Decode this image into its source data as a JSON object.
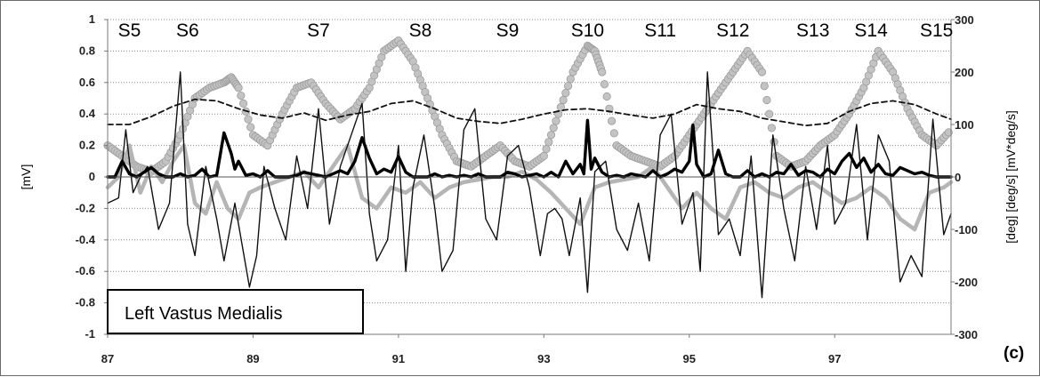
{
  "chart_data": {
    "type": "line",
    "title": "",
    "annotation": "Left Vastus Medialis",
    "panel_label": "(c)",
    "xlabel": "",
    "ylabel_left": "[mV]",
    "ylabel_right": "[deg] [deg/s] [mV*deg/s]",
    "xlim": [
      87,
      98.6
    ],
    "ylim_left": [
      -1,
      1
    ],
    "ylim_right": [
      -300,
      300
    ],
    "grid": true,
    "x_ticks": [
      "87",
      "89",
      "91",
      "93",
      "95",
      "97"
    ],
    "x_tick_values": [
      87,
      89,
      91,
      93,
      95,
      97
    ],
    "y_left_ticks": [
      "1",
      "0.8",
      "0.6",
      "0.4",
      "0.2",
      "0",
      "-0.2",
      "-0.4",
      "-0.6",
      "-0.8",
      "-1"
    ],
    "y_left_values": [
      1,
      0.8,
      0.6,
      0.4,
      0.2,
      0,
      -0.2,
      -0.4,
      -0.6,
      -0.8,
      -1
    ],
    "y_right_ticks": [
      "300",
      "200",
      "100",
      "0",
      "-100",
      "-200",
      "-300"
    ],
    "y_right_values": [
      300,
      200,
      100,
      0,
      -100,
      -200,
      -300
    ],
    "stride_labels": [
      "S5",
      "S6",
      "S7",
      "S8",
      "S9",
      "S10",
      "S11",
      "S12",
      "S13",
      "S14",
      "S15"
    ],
    "stride_label_x": [
      87.3,
      88.1,
      89.9,
      91.3,
      92.5,
      93.6,
      94.6,
      95.6,
      96.7,
      97.5,
      98.4
    ],
    "series": [
      {
        "axis": "right",
        "style": "thin-black",
        "color": "#111111",
        "x": [
          87.0,
          87.15,
          87.25,
          87.35,
          87.45,
          87.55,
          87.7,
          87.85,
          88.0,
          88.1,
          88.2,
          88.35,
          88.5,
          88.6,
          88.75,
          88.85,
          88.95,
          89.05,
          89.15,
          89.3,
          89.45,
          89.6,
          89.75,
          89.9,
          90.05,
          90.2,
          90.35,
          90.5,
          90.6,
          90.7,
          90.85,
          91.0,
          91.1,
          91.2,
          91.35,
          91.5,
          91.6,
          91.75,
          91.9,
          92.05,
          92.2,
          92.35,
          92.5,
          92.65,
          92.8,
          92.95,
          93.05,
          93.15,
          93.25,
          93.35,
          93.5,
          93.6,
          93.7,
          93.85,
          94.0,
          94.15,
          94.3,
          94.45,
          94.6,
          94.75,
          94.9,
          95.05,
          95.15,
          95.25,
          95.4,
          95.55,
          95.7,
          95.85,
          96.0,
          96.15,
          96.3,
          96.45,
          96.6,
          96.75,
          96.9,
          97.0,
          97.15,
          97.3,
          97.45,
          97.6,
          97.75,
          97.9,
          98.05,
          98.2,
          98.35,
          98.5,
          98.6
        ],
        "y": [
          -50,
          -40,
          90,
          -30,
          0,
          20,
          -100,
          -50,
          200,
          -90,
          -150,
          20,
          -80,
          -160,
          -50,
          -130,
          -210,
          -150,
          20,
          -60,
          -120,
          40,
          -60,
          130,
          -90,
          20,
          80,
          140,
          -70,
          -160,
          -120,
          60,
          -180,
          -20,
          80,
          -60,
          -180,
          -140,
          90,
          130,
          -80,
          -120,
          40,
          60,
          -20,
          -150,
          -70,
          -60,
          -80,
          -150,
          -40,
          -220,
          10,
          30,
          -100,
          -140,
          -50,
          -160,
          80,
          120,
          -90,
          -30,
          -180,
          200,
          -110,
          -80,
          -150,
          40,
          -230,
          80,
          -60,
          -160,
          20,
          -100,
          60,
          -90,
          -50,
          100,
          -120,
          80,
          30,
          -200,
          -150,
          -190,
          110,
          -110,
          -70
        ]
      },
      {
        "axis": "right",
        "style": "dashed",
        "color": "#111111",
        "x": [
          87.0,
          87.3,
          87.6,
          87.9,
          88.2,
          88.5,
          88.8,
          89.1,
          89.4,
          89.7,
          90.0,
          90.3,
          90.6,
          90.9,
          91.2,
          91.5,
          91.8,
          92.1,
          92.4,
          92.7,
          93.0,
          93.3,
          93.6,
          93.9,
          94.2,
          94.5,
          94.8,
          95.1,
          95.4,
          95.7,
          96.0,
          96.3,
          96.6,
          96.9,
          97.2,
          97.5,
          97.8,
          98.1,
          98.4,
          98.6
        ],
        "y": [
          100,
          100,
          115,
          135,
          148,
          145,
          130,
          118,
          112,
          122,
          108,
          118,
          125,
          140,
          145,
          130,
          112,
          106,
          102,
          110,
          120,
          128,
          130,
          125,
          118,
          112,
          120,
          138,
          130,
          125,
          112,
          105,
          98,
          102,
          125,
          140,
          145,
          138,
          120,
          110
        ]
      },
      {
        "axis": "right",
        "style": "gray-circles",
        "color": "#b5b5b5",
        "x": [
          87.0,
          87.2,
          87.4,
          87.6,
          87.8,
          88.0,
          88.2,
          88.4,
          88.6,
          88.7,
          88.8,
          89.0,
          89.2,
          89.4,
          89.6,
          89.8,
          90.0,
          90.2,
          90.4,
          90.6,
          90.8,
          91.0,
          91.2,
          91.4,
          91.6,
          91.8,
          92.0,
          92.2,
          92.4,
          92.6,
          92.8,
          93.0,
          93.2,
          93.4,
          93.6,
          93.7,
          93.8,
          94.0,
          94.2,
          94.4,
          94.6,
          94.8,
          95.0,
          95.2,
          95.4,
          95.6,
          95.8,
          96.0,
          96.2,
          96.4,
          96.6,
          96.8,
          97.0,
          97.2,
          97.4,
          97.6,
          97.8,
          98.0,
          98.2,
          98.4,
          98.6
        ],
        "y": [
          60,
          40,
          20,
          10,
          30,
          80,
          150,
          170,
          180,
          190,
          170,
          80,
          60,
          120,
          170,
          180,
          140,
          110,
          130,
          170,
          240,
          260,
          220,
          150,
          80,
          30,
          20,
          40,
          60,
          30,
          20,
          40,
          120,
          200,
          250,
          240,
          200,
          60,
          40,
          30,
          20,
          40,
          80,
          120,
          160,
          200,
          240,
          200,
          40,
          20,
          30,
          60,
          80,
          120,
          170,
          240,
          200,
          130,
          80,
          60,
          90
        ]
      },
      {
        "axis": "right",
        "style": "gray-thick",
        "color": "#b5b5b5",
        "x": [
          87.0,
          87.15,
          87.3,
          87.45,
          87.6,
          87.75,
          87.9,
          88.05,
          88.2,
          88.35,
          88.5,
          88.65,
          88.8,
          88.95,
          89.1,
          89.3,
          89.5,
          89.7,
          89.9,
          90.1,
          90.3,
          90.5,
          90.7,
          90.9,
          91.1,
          91.3,
          91.5,
          91.7,
          91.9,
          92.1,
          92.3,
          92.5,
          92.7,
          92.9,
          93.1,
          93.3,
          93.5,
          93.7,
          93.9,
          94.1,
          94.3,
          94.5,
          94.7,
          94.9,
          95.1,
          95.3,
          95.5,
          95.7,
          95.9,
          96.1,
          96.3,
          96.5,
          96.7,
          96.9,
          97.1,
          97.3,
          97.5,
          97.7,
          97.9,
          98.1,
          98.3,
          98.5,
          98.6
        ],
        "y": [
          -20,
          0,
          60,
          -30,
          20,
          -10,
          30,
          60,
          -50,
          -70,
          -10,
          -60,
          -80,
          -30,
          -20,
          -10,
          0,
          10,
          -20,
          20,
          60,
          -40,
          -60,
          -20,
          -30,
          -10,
          -40,
          -20,
          -10,
          -5,
          0,
          0,
          10,
          -5,
          -30,
          -60,
          -90,
          -20,
          -10,
          -5,
          0,
          20,
          -20,
          -60,
          -30,
          -60,
          -80,
          -20,
          -10,
          -30,
          -40,
          -20,
          -10,
          -30,
          -50,
          -40,
          -20,
          -40,
          -80,
          -100,
          -30,
          -20,
          -10
        ]
      },
      {
        "axis": "left",
        "style": "thick-black",
        "color": "#000000",
        "x": [
          87.0,
          87.1,
          87.2,
          87.3,
          87.4,
          87.5,
          87.6,
          87.7,
          87.8,
          87.9,
          88.0,
          88.1,
          88.2,
          88.3,
          88.4,
          88.5,
          88.6,
          88.7,
          88.75,
          88.8,
          88.9,
          89.0,
          89.1,
          89.2,
          89.3,
          89.4,
          89.5,
          89.6,
          89.7,
          89.8,
          89.9,
          90.0,
          90.1,
          90.2,
          90.3,
          90.4,
          90.5,
          90.6,
          90.7,
          90.8,
          90.9,
          91.0,
          91.1,
          91.2,
          91.3,
          91.4,
          91.5,
          91.6,
          91.7,
          91.8,
          91.9,
          92.0,
          92.1,
          92.2,
          92.3,
          92.4,
          92.5,
          92.6,
          92.7,
          92.8,
          92.9,
          93.0,
          93.1,
          93.2,
          93.3,
          93.4,
          93.5,
          93.55,
          93.6,
          93.65,
          93.7,
          93.8,
          93.9,
          94.0,
          94.1,
          94.2,
          94.3,
          94.4,
          94.5,
          94.6,
          94.7,
          94.8,
          94.9,
          95.0,
          95.05,
          95.1,
          95.2,
          95.3,
          95.4,
          95.5,
          95.6,
          95.7,
          95.8,
          95.9,
          96.0,
          96.1,
          96.2,
          96.3,
          96.4,
          96.5,
          96.6,
          96.7,
          96.8,
          96.9,
          97.0,
          97.1,
          97.2,
          97.3,
          97.4,
          97.5,
          97.6,
          97.7,
          97.8,
          97.9,
          98.0,
          98.1,
          98.2,
          98.3,
          98.4,
          98.5,
          98.6
        ],
        "y": [
          0,
          0,
          0.1,
          0.02,
          0,
          0.03,
          0.06,
          0.02,
          0,
          0,
          0.02,
          0,
          0.01,
          0.05,
          0,
          0.01,
          0.28,
          0.15,
          0.05,
          0.1,
          0.01,
          0.02,
          0,
          0.04,
          0,
          0,
          0,
          0.01,
          0.03,
          0.02,
          0.01,
          0,
          0.02,
          0.04,
          0.02,
          0.1,
          0.25,
          0.12,
          0.02,
          0.05,
          0.03,
          0.13,
          0.03,
          0,
          0,
          0,
          0.02,
          0,
          0.01,
          0,
          0.01,
          0,
          0.02,
          0,
          0,
          0,
          0.03,
          0.02,
          0,
          0.01,
          0.02,
          0,
          0.03,
          0,
          0.1,
          0.02,
          0.08,
          0.02,
          0.36,
          0.05,
          0.12,
          0.03,
          0,
          0.01,
          0,
          0.02,
          0.01,
          0,
          0.04,
          0,
          0.02,
          0.05,
          0.03,
          0.1,
          0.33,
          0.08,
          0,
          0.02,
          0.17,
          0.02,
          0,
          0,
          0.04,
          0,
          0.02,
          0,
          0.03,
          0.02,
          0.08,
          0.01,
          0.04,
          0.03,
          0,
          0.05,
          0.02,
          0.1,
          0.15,
          0.06,
          0.12,
          0.03,
          0.08,
          0.02,
          0.01,
          0.06,
          0.04,
          0.02,
          0.03,
          0.01,
          0,
          0,
          0
        ]
      }
    ]
  }
}
